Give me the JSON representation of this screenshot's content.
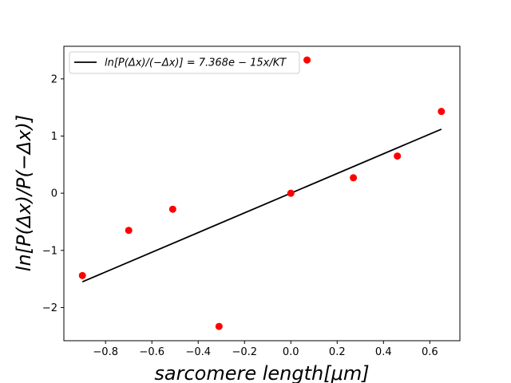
{
  "chart_data": {
    "type": "scatter",
    "title": "",
    "xlabel": "sarcomere length[μm]",
    "ylabel": "ln[P(Δx)/P(−Δx)]",
    "xlim": [
      -0.98,
      0.73
    ],
    "ylim": [
      -2.58,
      2.57
    ],
    "xticks": [
      -0.8,
      -0.6,
      -0.4,
      -0.2,
      0.0,
      0.2,
      0.4,
      0.6
    ],
    "xtick_labels": [
      "−0.8",
      "−0.6",
      "−0.4",
      "−0.2",
      "0.0",
      "0.2",
      "0.4",
      "0.6"
    ],
    "yticks": [
      -2,
      -1,
      0,
      1,
      2
    ],
    "ytick_labels": [
      "−2",
      "−1",
      "0",
      "1",
      "2"
    ],
    "grid": false,
    "legend_position": "top-left",
    "colors": {
      "points": "#ff0000",
      "line": "#000000"
    },
    "series": [
      {
        "type": "scatter",
        "x": [
          -0.9,
          -0.7,
          -0.51,
          -0.31,
          0.0,
          0.07,
          0.27,
          0.46,
          0.65
        ],
        "y": [
          -1.44,
          -0.65,
          -0.28,
          -2.33,
          0.0,
          2.33,
          0.27,
          0.65,
          1.43
        ]
      },
      {
        "type": "line",
        "name": "ln[P(Δx)/(−Δx)] = 7.368e − 15x/KT",
        "x": [
          -0.9,
          0.65
        ],
        "y": [
          -1.55,
          1.12
        ]
      }
    ]
  }
}
